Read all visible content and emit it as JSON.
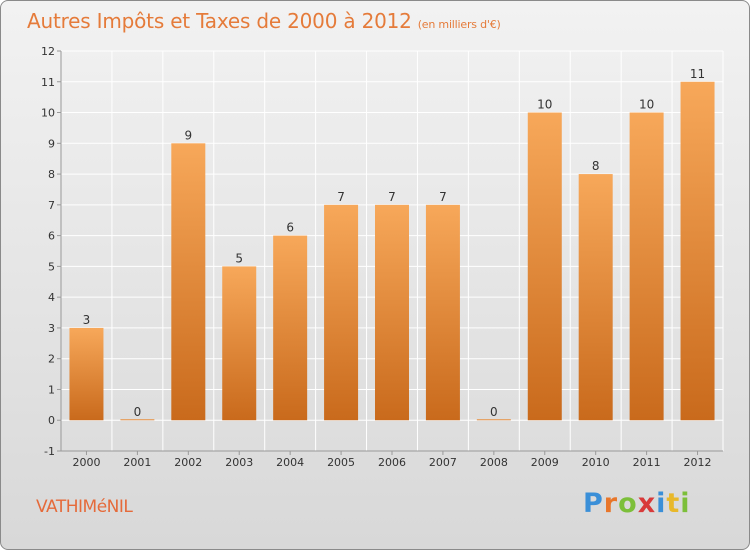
{
  "header": {
    "title": "Autres Impôts et Taxes de 2000 à 2012",
    "unit": "(en milliers d'€)"
  },
  "footer": {
    "commune": "VATHIMéNIL",
    "logo_letters": [
      "P",
      "r",
      "o",
      "x",
      "i",
      "t",
      "i"
    ],
    "logo_colors": [
      "#3a8fd8",
      "#e8762a",
      "#7cbf3a",
      "#d83a3a",
      "#3a8fd8",
      "#e8b82a",
      "#7cbf3a"
    ]
  },
  "colors": {
    "bar_light": "#f7a85a",
    "bar_dark": "#c96a1c",
    "axis": "#999999",
    "grid": "#ffffff",
    "label": "#333333"
  },
  "chart_data": {
    "type": "bar",
    "title": "Autres Impôts et Taxes de 2000 à 2012",
    "subtitle": "(en milliers d'€)",
    "categories": [
      "2000",
      "2001",
      "2002",
      "2003",
      "2004",
      "2005",
      "2006",
      "2007",
      "2008",
      "2009",
      "2010",
      "2011",
      "2012"
    ],
    "values": [
      3,
      0,
      9,
      5,
      6,
      7,
      7,
      7,
      0,
      10,
      8,
      10,
      11
    ],
    "ylim": [
      -1,
      12
    ],
    "yticks": [
      -1,
      0,
      1,
      2,
      3,
      4,
      5,
      6,
      7,
      8,
      9,
      10,
      11,
      12
    ],
    "grid": true,
    "data_labels": true
  }
}
